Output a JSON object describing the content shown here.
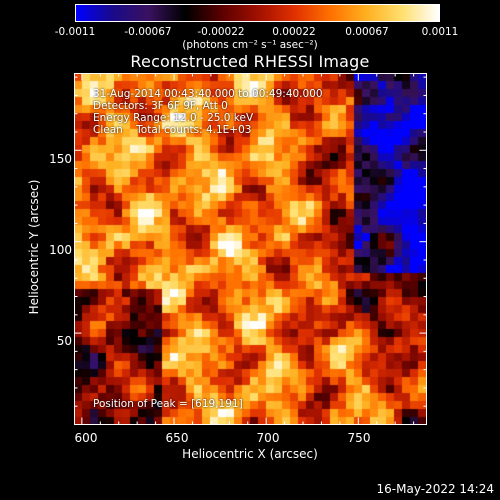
{
  "colorbar": {
    "tick_labels": [
      "-0.0011",
      "-0.00067",
      "-0.00022",
      "0.00022",
      "0.00067",
      "0.0011"
    ],
    "unit_label": "(photons cm⁻² s⁻¹ asec⁻²)",
    "colormap": [
      "#0000ff",
      "#1a0a8a",
      "#3a1260",
      "#000000",
      "#5a0000",
      "#a01000",
      "#e03000",
      "#ff7000",
      "#ffb020",
      "#ffe070",
      "#ffffff"
    ]
  },
  "chart_data": {
    "type": "heatmap",
    "title": "Reconstructed RHESSI Image",
    "xlabel": "Heliocentric X (arcsec)",
    "ylabel": "Heliocentric Y (arcsec)",
    "xlim": [
      596,
      787
    ],
    "ylim": [
      0,
      192
    ],
    "x_ticks": [
      600,
      650,
      700,
      750
    ],
    "y_ticks": [
      50,
      100,
      150
    ],
    "zlim": [
      -0.0011,
      0.0011
    ],
    "peak_position": [
      619,
      191
    ],
    "annotations": [
      "31-Aug-2014 00:43:40.000 to 00:49:40.000",
      "Detectors: 3F 6F 9F, Att 0",
      "Energy Range: 12.0 - 25.0 keV",
      "Clean    Total counts: 4.1E+03",
      "Position of Peak = [619,191]"
    ]
  },
  "footer": {
    "date": "16-May-2022 14:24"
  }
}
